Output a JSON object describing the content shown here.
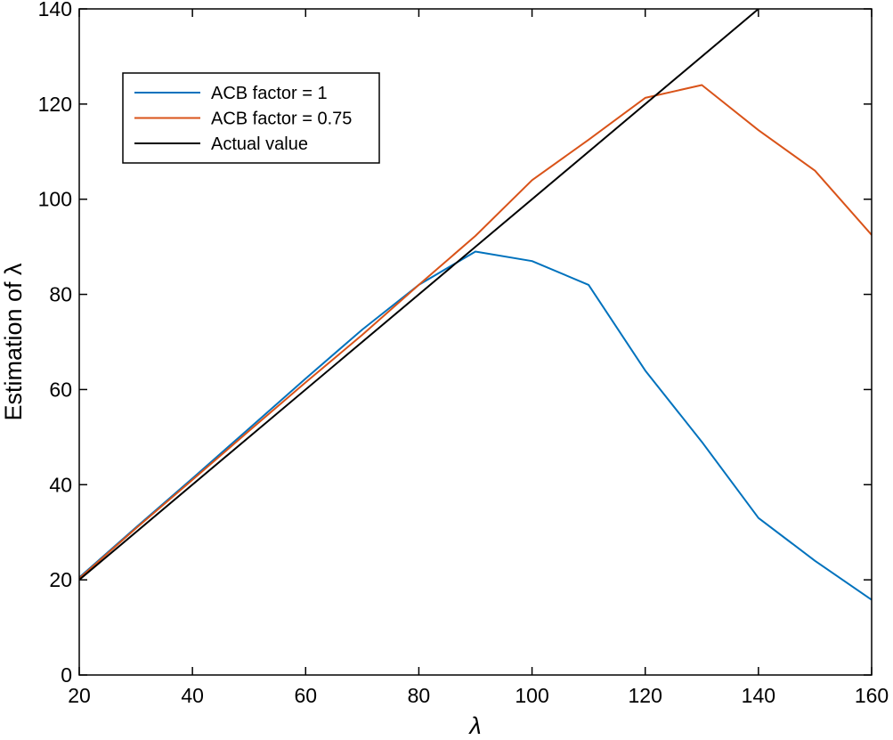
{
  "chart_data": {
    "type": "line",
    "xlabel": "λ",
    "ylabel": "Estimation of λ",
    "xlim": [
      20,
      160
    ],
    "ylim": [
      0,
      140
    ],
    "xticks": [
      20,
      40,
      60,
      80,
      100,
      120,
      140,
      160
    ],
    "yticks": [
      0,
      20,
      40,
      60,
      80,
      100,
      120,
      140
    ],
    "grid": false,
    "legend_position": "top-left",
    "series": [
      {
        "name": "ACB factor = 1",
        "color": "#0072BD",
        "x": [
          20,
          30,
          40,
          50,
          60,
          70,
          80,
          90,
          100,
          110,
          120,
          130,
          140,
          150,
          160
        ],
        "y": [
          20.5,
          31,
          41.3,
          51.8,
          62.3,
          72.6,
          82,
          89,
          87,
          82,
          64,
          49,
          33,
          24,
          15.8
        ]
      },
      {
        "name": "ACB factor = 0.75",
        "color": "#D95319",
        "x": [
          20,
          30,
          40,
          50,
          60,
          70,
          80,
          90,
          100,
          110,
          120,
          130,
          140,
          150,
          160
        ],
        "y": [
          20.3,
          30.8,
          41,
          51.3,
          61.5,
          71.5,
          82,
          92.3,
          104,
          112.5,
          121.3,
          124,
          114.5,
          106,
          92.5
        ]
      },
      {
        "name": "Actual value",
        "color": "#000000",
        "x": [
          20,
          140
        ],
        "y": [
          20,
          140
        ]
      }
    ]
  }
}
